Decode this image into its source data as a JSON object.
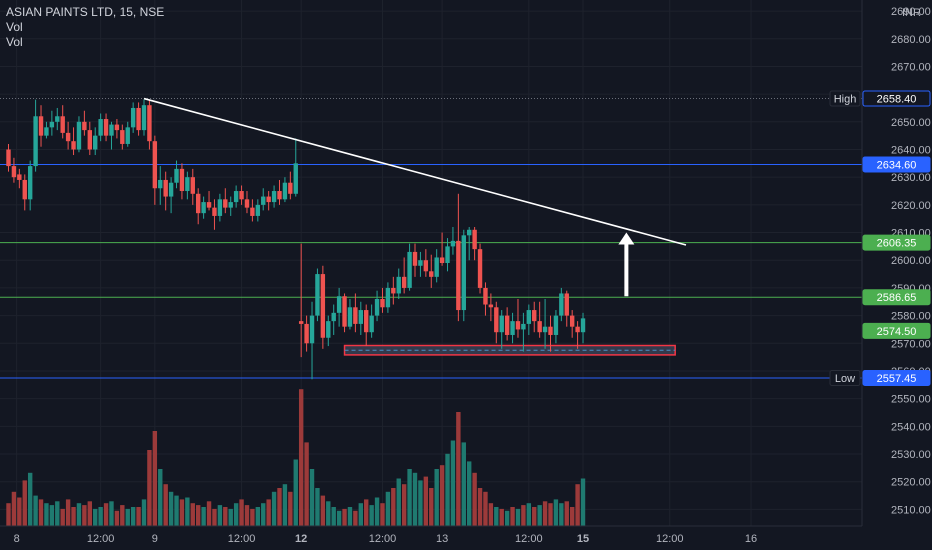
{
  "header": {
    "symbol": "ASIAN PAINTS LTD, 15, NSE",
    "indicator_1": "Vol",
    "indicator_2": "Vol",
    "currency": "INR"
  },
  "colors": {
    "background": "#131722",
    "grid": "#1e222d",
    "up": "#26a69a",
    "down": "#ef5350",
    "vol_up": "#1f7a70",
    "vol_down": "#9c3a3a",
    "blue_line": "#2962ff",
    "green_line": "#4caf50",
    "trend_line": "#ffffff",
    "zone_border": "#f23645",
    "zone_fill": "#3a3f52",
    "zone_dash": "#4a90c8"
  },
  "chart_data": {
    "type": "candlestick",
    "ylim": [
      2504,
      2694
    ],
    "y_ticks": [
      2510,
      2520,
      2530,
      2540,
      2550,
      2560,
      2570,
      2580,
      2590,
      2600,
      2610,
      2620,
      2630,
      2640,
      2650,
      2660,
      2670,
      2680,
      2690
    ],
    "y_tick_labels": [
      "2510.00",
      "2520.00",
      "2530.00",
      "2540.00",
      "2550.00",
      "2560.00",
      "2570.00",
      "2580.00",
      "2590.00",
      "2600.00",
      "2610.00",
      "2620.00",
      "2630.00",
      "2640.00",
      "2650.00",
      "2660.00",
      "2670.00",
      "2680.00",
      "2690.00"
    ],
    "x_labels": [
      "8",
      "12:00",
      "9",
      "12:00",
      "12",
      "12:00",
      "13",
      "12:00",
      "15",
      "12:00",
      "16"
    ],
    "x_label_bars": [
      1.5,
      17,
      27,
      43,
      54,
      69,
      80,
      96,
      106,
      122,
      137
    ],
    "price_labels": [
      {
        "text": "High",
        "value": "2658.40",
        "price": 2658.4,
        "style": "outline"
      },
      {
        "text": "",
        "value": "2634.60",
        "price": 2634.6,
        "style": "blue"
      },
      {
        "text": "",
        "value": "2606.35",
        "price": 2606.35,
        "style": "green"
      },
      {
        "text": "",
        "value": "2586.65",
        "price": 2586.65,
        "style": "green"
      },
      {
        "text": "",
        "value": "2574.50",
        "price": 2574.5,
        "style": "green"
      },
      {
        "text": "Low",
        "value": "2557.45",
        "price": 2557.45,
        "style": "blue"
      }
    ],
    "horizontal_lines": [
      {
        "price": 2658.4,
        "style": "dotted"
      },
      {
        "price": 2634.6,
        "style": "blue"
      },
      {
        "price": 2606.35,
        "style": "green"
      },
      {
        "price": 2586.65,
        "style": "green"
      },
      {
        "price": 2557.45,
        "style": "blue"
      }
    ],
    "trend_line": {
      "from": [
        25,
        2658.4
      ],
      "to": [
        125,
        2605.5
      ]
    },
    "arrow": {
      "bar": 114,
      "from": 2587,
      "to": 2610
    },
    "support_zone": {
      "from_bar": 62,
      "to_bar": 123,
      "top": 2569.2,
      "bottom": 2565.8,
      "mid": 2567.5
    },
    "candles": [
      [
        2640,
        2642,
        2632,
        2634
      ],
      [
        2634,
        2637,
        2628,
        2630
      ],
      [
        2631,
        2633,
        2626,
        2629
      ],
      [
        2629,
        2631,
        2618,
        2622
      ],
      [
        2622,
        2636,
        2618,
        2634
      ],
      [
        2634,
        2658,
        2632,
        2652
      ],
      [
        2652,
        2656,
        2641,
        2645
      ],
      [
        2645,
        2650,
        2644,
        2648
      ],
      [
        2648,
        2654,
        2645,
        2650
      ],
      [
        2650,
        2655,
        2647,
        2652
      ],
      [
        2652,
        2656,
        2644,
        2646
      ],
      [
        2646,
        2650,
        2640,
        2643
      ],
      [
        2643,
        2648,
        2638,
        2640
      ],
      [
        2640,
        2652,
        2639,
        2650
      ],
      [
        2650,
        2654,
        2645,
        2647
      ],
      [
        2647,
        2650,
        2638,
        2640
      ],
      [
        2640,
        2648,
        2638,
        2645
      ],
      [
        2645,
        2653,
        2643,
        2651
      ],
      [
        2651,
        2653,
        2643,
        2645
      ],
      [
        2645,
        2650,
        2640,
        2649
      ],
      [
        2649,
        2651,
        2644,
        2647
      ],
      [
        2647,
        2649,
        2640,
        2642
      ],
      [
        2642,
        2650,
        2641,
        2648
      ],
      [
        2648,
        2657,
        2646,
        2655
      ],
      [
        2655,
        2657,
        2645,
        2647
      ],
      [
        2647,
        2658,
        2645,
        2656
      ],
      [
        2656,
        2658,
        2640,
        2643
      ],
      [
        2643,
        2645,
        2620,
        2626
      ],
      [
        2626,
        2634,
        2620,
        2629
      ],
      [
        2629,
        2632,
        2618,
        2623
      ],
      [
        2623,
        2630,
        2617,
        2628
      ],
      [
        2628,
        2636,
        2626,
        2633
      ],
      [
        2633,
        2635,
        2622,
        2625
      ],
      [
        2625,
        2632,
        2622,
        2630
      ],
      [
        2630,
        2633,
        2620,
        2624
      ],
      [
        2624,
        2626,
        2613,
        2617
      ],
      [
        2617,
        2623,
        2615,
        2621
      ],
      [
        2621,
        2625,
        2618,
        2619
      ],
      [
        2619,
        2622,
        2611,
        2616
      ],
      [
        2616,
        2624,
        2614,
        2622
      ],
      [
        2622,
        2626,
        2617,
        2619
      ],
      [
        2619,
        2623,
        2616,
        2621
      ],
      [
        2621,
        2627,
        2619,
        2625
      ],
      [
        2625,
        2627,
        2620,
        2622
      ],
      [
        2622,
        2625,
        2617,
        2619
      ],
      [
        2619,
        2622,
        2614,
        2616
      ],
      [
        2616,
        2622,
        2614,
        2620
      ],
      [
        2620,
        2626,
        2618,
        2623
      ],
      [
        2623,
        2625,
        2618,
        2621
      ],
      [
        2621,
        2627,
        2619,
        2625
      ],
      [
        2625,
        2629,
        2620,
        2622
      ],
      [
        2622,
        2630,
        2621,
        2628
      ],
      [
        2628,
        2632,
        2622,
        2624
      ],
      [
        2624,
        2644,
        2623,
        2635
      ],
      [
        2578,
        2606,
        2565,
        2577
      ],
      [
        2577,
        2580,
        2567,
        2570
      ],
      [
        2570,
        2585,
        2557,
        2580
      ],
      [
        2580,
        2597,
        2578,
        2595
      ],
      [
        2595,
        2598,
        2568,
        2572
      ],
      [
        2572,
        2580,
        2569,
        2578
      ],
      [
        2578,
        2584,
        2573,
        2581
      ],
      [
        2581,
        2590,
        2576,
        2587
      ],
      [
        2587,
        2588,
        2574,
        2576
      ],
      [
        2576,
        2586,
        2575,
        2583
      ],
      [
        2583,
        2588,
        2574,
        2577
      ],
      [
        2577,
        2585,
        2573,
        2582
      ],
      [
        2582,
        2584,
        2569,
        2574
      ],
      [
        2574,
        2584,
        2572,
        2580
      ],
      [
        2580,
        2589,
        2578,
        2586
      ],
      [
        2586,
        2590,
        2581,
        2583
      ],
      [
        2583,
        2592,
        2581,
        2590
      ],
      [
        2590,
        2594,
        2584,
        2588
      ],
      [
        2588,
        2597,
        2586,
        2594
      ],
      [
        2594,
        2601,
        2588,
        2590
      ],
      [
        2590,
        2606,
        2589,
        2603
      ],
      [
        2603,
        2606,
        2594,
        2598
      ],
      [
        2598,
        2603,
        2594,
        2600
      ],
      [
        2600,
        2604,
        2594,
        2596
      ],
      [
        2596,
        2602,
        2590,
        2594
      ],
      [
        2594,
        2604,
        2592,
        2601
      ],
      [
        2601,
        2610,
        2598,
        2599
      ],
      [
        2599,
        2608,
        2596,
        2605
      ],
      [
        2605,
        2612,
        2602,
        2607
      ],
      [
        2607,
        2624,
        2578,
        2582
      ],
      [
        2582,
        2611,
        2578,
        2609
      ],
      [
        2609,
        2612,
        2600,
        2611
      ],
      [
        2611,
        2612,
        2600,
        2604
      ],
      [
        2604,
        2606,
        2588,
        2590
      ],
      [
        2590,
        2592,
        2580,
        2584
      ],
      [
        2584,
        2588,
        2578,
        2583
      ],
      [
        2583,
        2585,
        2570,
        2574
      ],
      [
        2574,
        2582,
        2568,
        2580
      ],
      [
        2580,
        2583,
        2571,
        2573
      ],
      [
        2573,
        2581,
        2570,
        2578
      ],
      [
        2578,
        2586,
        2572,
        2575
      ],
      [
        2575,
        2581,
        2567,
        2577
      ],
      [
        2577,
        2584,
        2573,
        2582
      ],
      [
        2582,
        2585,
        2574,
        2578
      ],
      [
        2578,
        2585,
        2572,
        2574
      ],
      [
        2574,
        2586,
        2568,
        2576
      ],
      [
        2576,
        2580,
        2567,
        2573
      ],
      [
        2573,
        2582,
        2570,
        2580
      ],
      [
        2580,
        2590,
        2578,
        2588
      ],
      [
        2588,
        2589,
        2576,
        2580
      ],
      [
        2580,
        2582,
        2572,
        2576
      ],
      [
        2576,
        2578,
        2568,
        2574
      ],
      [
        2574,
        2581,
        2570,
        2579
      ]
    ],
    "volumes": [
      [
        12,
        "d"
      ],
      [
        18,
        "d"
      ],
      [
        15,
        "d"
      ],
      [
        24,
        "d"
      ],
      [
        28,
        "u"
      ],
      [
        16,
        "u"
      ],
      [
        14,
        "d"
      ],
      [
        12,
        "u"
      ],
      [
        11,
        "u"
      ],
      [
        13,
        "u"
      ],
      [
        9,
        "d"
      ],
      [
        14,
        "d"
      ],
      [
        10,
        "d"
      ],
      [
        12,
        "u"
      ],
      [
        11,
        "d"
      ],
      [
        13,
        "d"
      ],
      [
        9,
        "u"
      ],
      [
        10,
        "u"
      ],
      [
        12,
        "d"
      ],
      [
        13,
        "u"
      ],
      [
        8,
        "d"
      ],
      [
        11,
        "d"
      ],
      [
        9,
        "u"
      ],
      [
        10,
        "u"
      ],
      [
        10,
        "d"
      ],
      [
        14,
        "u"
      ],
      [
        40,
        "d"
      ],
      [
        50,
        "d"
      ],
      [
        30,
        "u"
      ],
      [
        22,
        "d"
      ],
      [
        18,
        "u"
      ],
      [
        16,
        "u"
      ],
      [
        14,
        "d"
      ],
      [
        15,
        "u"
      ],
      [
        12,
        "d"
      ],
      [
        11,
        "d"
      ],
      [
        10,
        "u"
      ],
      [
        13,
        "d"
      ],
      [
        9,
        "d"
      ],
      [
        11,
        "u"
      ],
      [
        10,
        "d"
      ],
      [
        9,
        "u"
      ],
      [
        12,
        "u"
      ],
      [
        14,
        "d"
      ],
      [
        11,
        "d"
      ],
      [
        9,
        "d"
      ],
      [
        10,
        "u"
      ],
      [
        12,
        "u"
      ],
      [
        14,
        "d"
      ],
      [
        18,
        "u"
      ],
      [
        20,
        "d"
      ],
      [
        22,
        "u"
      ],
      [
        18,
        "d"
      ],
      [
        35,
        "u"
      ],
      [
        72,
        "d"
      ],
      [
        44,
        "d"
      ],
      [
        30,
        "u"
      ],
      [
        20,
        "u"
      ],
      [
        16,
        "d"
      ],
      [
        13,
        "u"
      ],
      [
        10,
        "u"
      ],
      [
        8,
        "u"
      ],
      [
        9,
        "d"
      ],
      [
        10,
        "u"
      ],
      [
        8,
        "d"
      ],
      [
        12,
        "u"
      ],
      [
        14,
        "d"
      ],
      [
        11,
        "u"
      ],
      [
        15,
        "u"
      ],
      [
        12,
        "d"
      ],
      [
        18,
        "u"
      ],
      [
        20,
        "d"
      ],
      [
        25,
        "u"
      ],
      [
        22,
        "d"
      ],
      [
        30,
        "u"
      ],
      [
        28,
        "u"
      ],
      [
        24,
        "u"
      ],
      [
        26,
        "d"
      ],
      [
        20,
        "d"
      ],
      [
        30,
        "u"
      ],
      [
        32,
        "d"
      ],
      [
        38,
        "u"
      ],
      [
        45,
        "u"
      ],
      [
        60,
        "d"
      ],
      [
        44,
        "u"
      ],
      [
        34,
        "u"
      ],
      [
        28,
        "d"
      ],
      [
        20,
        "d"
      ],
      [
        18,
        "d"
      ],
      [
        12,
        "d"
      ],
      [
        10,
        "u"
      ],
      [
        9,
        "d"
      ],
      [
        8,
        "u"
      ],
      [
        10,
        "d"
      ],
      [
        9,
        "u"
      ],
      [
        11,
        "d"
      ],
      [
        12,
        "u"
      ],
      [
        10,
        "d"
      ],
      [
        11,
        "u"
      ],
      [
        13,
        "d"
      ],
      [
        12,
        "d"
      ],
      [
        14,
        "u"
      ],
      [
        12,
        "u"
      ],
      [
        13,
        "d"
      ],
      [
        10,
        "d"
      ],
      [
        22,
        "d"
      ],
      [
        25,
        "u"
      ]
    ]
  }
}
